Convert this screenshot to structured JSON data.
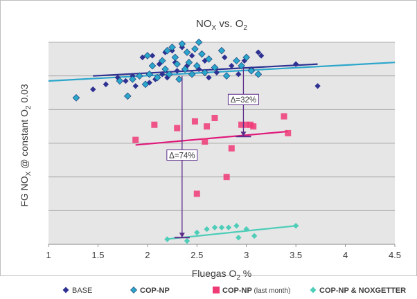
{
  "chart_data": {
    "type": "scatter",
    "title": "NO",
    "title_sub": "X",
    "title_rest": " vs. O",
    "title_sub2": "2",
    "xlabel_main": "Fluegas O",
    "xlabel_sub": "2",
    "xlabel_tail": "  %",
    "ylabel_a": "FG NO",
    "ylabel_sub1": "X",
    "ylabel_b": " @ constant O",
    "ylabel_sub2": "2",
    "ylabel_c": " 0.03",
    "xlim": [
      1,
      4.5
    ],
    "ylim": [
      0,
      6
    ],
    "x_ticks": [
      "1",
      "1.5",
      "2",
      "2.5",
      "3",
      "3.5",
      "4",
      "4.5"
    ],
    "grid": true,
    "legend_position": "bottom",
    "colors": {
      "BASE": "#2e3192",
      "COP-NP": "#2ba6cb",
      "COP-NP (last month)": "#ee3a75",
      "COP-NP & NOXGETTER": "#4ecdb8",
      "annotation": "#5b2c8a",
      "plot_bg": "#e6e6e6"
    },
    "legend": [
      {
        "label": "BASE",
        "marker": "diamond",
        "color": "#2e3192",
        "bold": false,
        "suffix": ""
      },
      {
        "label": "COP-NP",
        "marker": "diamond-outline",
        "color": "#2ba6cb",
        "bold": true,
        "suffix": ""
      },
      {
        "label": "COP-NP",
        "marker": "square",
        "color": "#ee3a75",
        "bold": true,
        "suffix": " (last month)"
      },
      {
        "label": "COP-NP & NOXGETTER",
        "marker": "diamond",
        "color": "#4ecdb8",
        "bold": true,
        "suffix": ""
      }
    ],
    "series": [
      {
        "name": "BASE",
        "marker": "diamond",
        "color": "#2e3192",
        "x": [
          1.45,
          1.58,
          1.7,
          1.78,
          1.85,
          1.88,
          1.95,
          2.02,
          2.05,
          2.08,
          2.12,
          2.15,
          2.18,
          2.2,
          2.25,
          2.28,
          2.3,
          2.35,
          2.4,
          2.45,
          2.52,
          2.58,
          2.62,
          2.7,
          2.78,
          2.85,
          2.92,
          2.98,
          3.05,
          3.12,
          3.15,
          3.5,
          3.72
        ],
        "y": [
          4.6,
          4.75,
          4.95,
          4.85,
          5.0,
          4.7,
          5.55,
          4.8,
          5.6,
          4.9,
          5.35,
          5.05,
          5.7,
          4.95,
          5.75,
          5.4,
          5.15,
          5.85,
          5.3,
          5.6,
          5.2,
          5.45,
          4.95,
          5.1,
          5.55,
          5.3,
          5.05,
          5.45,
          5.2,
          5.7,
          5.6,
          5.35,
          4.7
        ]
      },
      {
        "name": "COP-NP",
        "marker": "diamond-outline",
        "color": "#2ba6cb",
        "x": [
          1.28,
          1.72,
          1.8,
          1.85,
          1.92,
          1.98,
          2.0,
          2.02,
          2.05,
          2.1,
          2.15,
          2.18,
          2.2,
          2.22,
          2.25,
          2.28,
          2.3,
          2.32,
          2.35,
          2.38,
          2.4,
          2.42,
          2.45,
          2.48,
          2.5,
          2.52,
          2.55,
          2.58,
          2.62,
          2.68,
          2.75,
          2.8,
          2.9,
          2.95,
          3.0,
          3.05,
          3.12
        ],
        "y": [
          4.35,
          4.85,
          4.4,
          4.9,
          5.0,
          4.75,
          5.6,
          5.05,
          5.3,
          4.95,
          5.45,
          5.2,
          5.75,
          5.05,
          5.85,
          5.55,
          5.35,
          4.9,
          5.95,
          5.2,
          5.7,
          5.4,
          5.05,
          5.8,
          5.3,
          6.0,
          5.65,
          5.1,
          5.5,
          5.25,
          5.75,
          5.0,
          5.45,
          5.3,
          5.55,
          5.15,
          5.05
        ]
      },
      {
        "name": "COP-NP (last month)",
        "marker": "square",
        "color": "#ee3a75",
        "x": [
          1.88,
          2.07,
          2.3,
          2.48,
          2.5,
          2.58,
          2.6,
          2.68,
          2.8,
          2.85,
          2.95,
          3.0,
          3.04,
          3.07,
          3.38,
          3.42
        ],
        "y": [
          3.1,
          3.55,
          3.45,
          3.65,
          1.5,
          3.05,
          3.5,
          3.75,
          2.0,
          2.85,
          3.55,
          3.55,
          3.55,
          3.5,
          3.8,
          3.3
        ]
      },
      {
        "name": "COP-NP & NOXGETTER",
        "marker": "diamond",
        "color": "#4ecdb8",
        "x": [
          2.2,
          2.4,
          2.5,
          2.6,
          2.68,
          2.75,
          2.82,
          2.9,
          2.92,
          3.0,
          3.08,
          3.5
        ],
        "y": [
          0.15,
          0.1,
          0.35,
          0.45,
          0.5,
          0.5,
          0.5,
          0.55,
          0.2,
          0.45,
          0.25,
          0.55
        ]
      }
    ],
    "trendlines": [
      {
        "series": "BASE",
        "color": "#2e3192",
        "x": [
          1.45,
          3.72
        ],
        "y": [
          5.0,
          5.35
        ]
      },
      {
        "series": "COP-NP",
        "color": "#2ba6cb",
        "x": [
          1.0,
          4.5
        ],
        "y": [
          4.85,
          5.4
        ]
      },
      {
        "series": "COP-NP (last month)",
        "color": "#e0177a",
        "x": [
          1.88,
          3.42
        ],
        "y": [
          2.95,
          3.35
        ]
      },
      {
        "series": "COP-NP & NOXGETTER",
        "color": "#4ecdb8",
        "x": [
          2.18,
          3.5
        ],
        "y": [
          0.15,
          0.55
        ]
      }
    ],
    "annotations": [
      {
        "label": "Δ=74%",
        "x": 2.35,
        "y_from": 5.0,
        "y_to": 0.2,
        "label_y": 2.65
      },
      {
        "label": "Δ=32%",
        "x": 2.97,
        "y_from": 5.25,
        "y_to": 3.2,
        "label_y": 4.3
      }
    ]
  }
}
